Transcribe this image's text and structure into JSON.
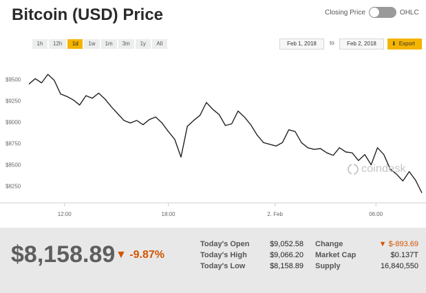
{
  "header": {
    "title": "Bitcoin (USD) Price"
  },
  "toggle": {
    "left_label": "Closing Price",
    "right_label": "OHLC"
  },
  "ranges": [
    "1h",
    "12h",
    "1d",
    "1w",
    "1m",
    "3m",
    "1y",
    "All"
  ],
  "active_range": "1d",
  "dates": {
    "from": "Feb 1, 2018",
    "to_label": "to",
    "to": "Feb 2, 2018"
  },
  "export_label": "Export",
  "watermark": "coindesk",
  "chart_data": {
    "type": "line",
    "xticks": [
      "12:00",
      "18:00",
      "2. Feb",
      "06:00"
    ],
    "yticks": [
      "$9500",
      "$9250",
      "$9000",
      "$8750",
      "$8500",
      "$8250"
    ],
    "ylim": [
      8150,
      9625
    ],
    "x": [
      0,
      3,
      6,
      9,
      12,
      15,
      18,
      21,
      24,
      27,
      30,
      33,
      36,
      39,
      42,
      45,
      48,
      51,
      54,
      57,
      60,
      63,
      66,
      69,
      72,
      75,
      78,
      81,
      84,
      87,
      90,
      93,
      96,
      99,
      102,
      105,
      108,
      111,
      114,
      117,
      120,
      123,
      126,
      129,
      132,
      135,
      138,
      141,
      144,
      147,
      150,
      153,
      156,
      159,
      162,
      165,
      168,
      171,
      174,
      177,
      180,
      183,
      186
    ],
    "values": [
      9445,
      9510,
      9460,
      9560,
      9490,
      9330,
      9300,
      9260,
      9200,
      9310,
      9280,
      9340,
      9270,
      9180,
      9100,
      9020,
      8990,
      9020,
      8970,
      9030,
      9060,
      8990,
      8890,
      8800,
      8590,
      8950,
      9020,
      9080,
      9230,
      9150,
      9090,
      8960,
      8980,
      9130,
      9060,
      8970,
      8850,
      8760,
      8740,
      8720,
      8760,
      8910,
      8890,
      8760,
      8700,
      8680,
      8690,
      8640,
      8610,
      8700,
      8650,
      8640,
      8550,
      8620,
      8500,
      8700,
      8620,
      8450,
      8390,
      8310,
      8420,
      8320,
      8170
    ],
    "line_color": "#222222",
    "grid": false
  },
  "footer": {
    "price": "$8,158.89",
    "change_pct": "-9.87%",
    "down_arrow": "▼",
    "stats_left": [
      {
        "label": "Today's Open",
        "value": "$9,052.58"
      },
      {
        "label": "Today's High",
        "value": "$9,066.20"
      },
      {
        "label": "Today's Low",
        "value": "$8,158.89"
      }
    ],
    "stats_right": [
      {
        "label": "Change",
        "value": "$-893.69"
      },
      {
        "label": "Market Cap",
        "value": "$0.137T"
      },
      {
        "label": "Supply",
        "value": "16,840,550"
      }
    ]
  },
  "colors": {
    "accent": "#f4b400",
    "negative": "#d35400",
    "footer_bg": "#e8e8e8"
  }
}
